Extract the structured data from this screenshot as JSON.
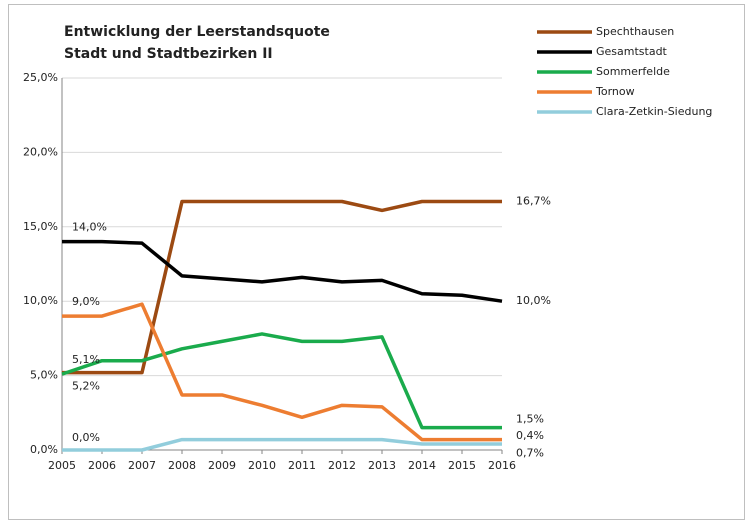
{
  "chart_data": {
    "type": "line",
    "title": "Entwicklung  der Leerstandsquote",
    "subtitle": "Stadt und Stadtbezirken II",
    "categories": [
      "2005",
      "2006",
      "2007",
      "2008",
      "2009",
      "2010",
      "2011",
      "2012",
      "2013",
      "2014",
      "2015",
      "2016"
    ],
    "ylim": [
      0,
      25
    ],
    "yticks": [
      {
        "value": 0,
        "label": "0,0%"
      },
      {
        "value": 5,
        "label": "5,0%"
      },
      {
        "value": 10,
        "label": "10,0%"
      },
      {
        "value": 15,
        "label": "15,0%"
      },
      {
        "value": 20,
        "label": "20,0%"
      },
      {
        "value": 25,
        "label": "25,0%"
      }
    ],
    "grid": true,
    "legend": "right",
    "series": [
      {
        "name": "Spechthausen",
        "color": "#9c4a12",
        "values": [
          5.2,
          5.2,
          5.2,
          16.7,
          16.7,
          16.7,
          16.7,
          16.7,
          16.1,
          16.7,
          16.7,
          16.7
        ],
        "value_labels": [
          "5,2%",
          null,
          null,
          null,
          null,
          null,
          null,
          null,
          null,
          null,
          null,
          "16,7%"
        ]
      },
      {
        "name": "Gesamtstadt",
        "color": "#000000",
        "values": [
          14.0,
          14.0,
          13.9,
          11.7,
          11.5,
          11.3,
          11.6,
          11.3,
          11.4,
          10.5,
          10.4,
          10.0
        ],
        "value_labels": [
          "14,0%",
          null,
          null,
          null,
          null,
          null,
          null,
          null,
          null,
          null,
          null,
          "10,0%"
        ]
      },
      {
        "name": "Sommerfelde",
        "color": "#1aab4c",
        "values": [
          5.1,
          6.0,
          6.0,
          6.8,
          7.3,
          7.8,
          7.3,
          7.3,
          7.6,
          1.5,
          1.5,
          1.5
        ],
        "value_labels": [
          "5,1%",
          null,
          null,
          null,
          null,
          null,
          null,
          null,
          null,
          null,
          null,
          "1,5%"
        ]
      },
      {
        "name": "Tornow",
        "color": "#ed7d31",
        "values": [
          9.0,
          9.0,
          9.8,
          3.7,
          3.7,
          3.0,
          2.2,
          3.0,
          2.9,
          0.7,
          0.7,
          0.7
        ],
        "value_labels": [
          "9,0%",
          null,
          null,
          null,
          null,
          null,
          null,
          null,
          null,
          null,
          null,
          "0,7%"
        ]
      },
      {
        "name": "Clara-Zetkin-Siedung",
        "color": "#92cddc",
        "values": [
          0.0,
          0.0,
          0.0,
          0.7,
          0.7,
          0.7,
          0.7,
          0.7,
          0.7,
          0.4,
          0.4,
          0.4
        ],
        "value_labels": [
          "0,0%",
          null,
          null,
          null,
          null,
          null,
          null,
          null,
          null,
          null,
          null,
          "0,4%"
        ]
      }
    ]
  }
}
